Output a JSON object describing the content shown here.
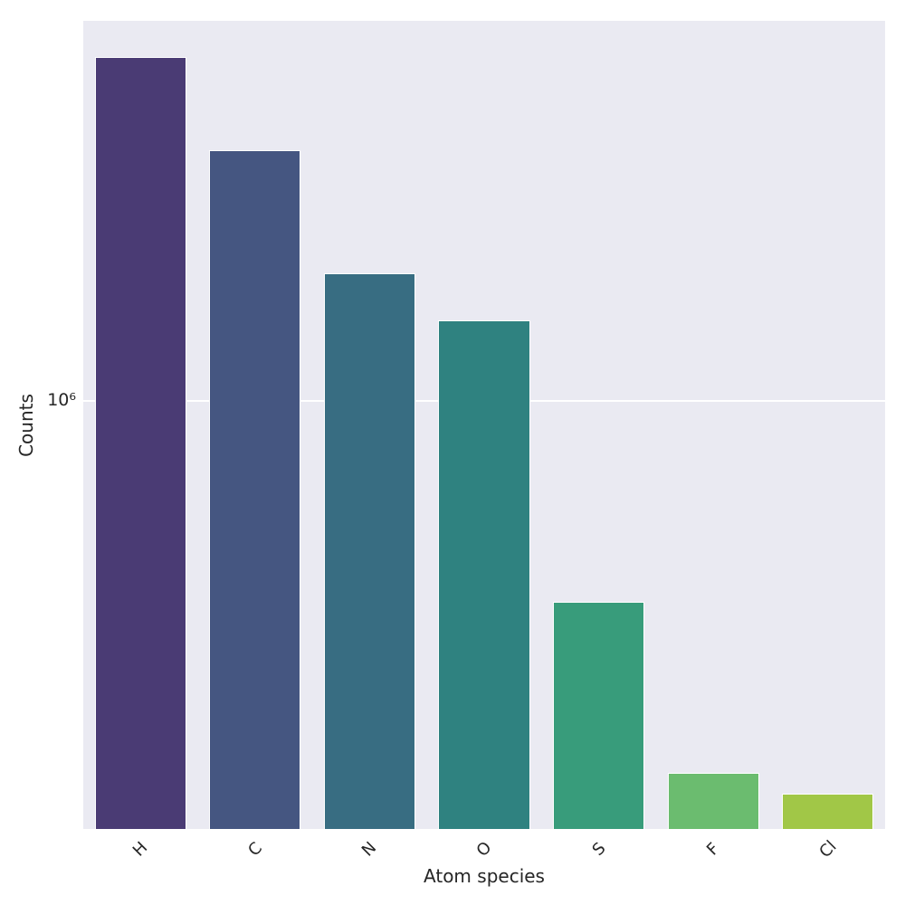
{
  "figure": {
    "background": "#ffffff",
    "plot_background": "#eaeaf2",
    "grid_color": "#ffffff",
    "text_color": "#262626"
  },
  "chart_data": {
    "type": "bar",
    "title": "",
    "xlabel": "Atom species",
    "ylabel": "Counts",
    "categories": [
      "H",
      "C",
      "N",
      "O",
      "S",
      "F",
      "Cl"
    ],
    "values": [
      6350000,
      3850000,
      1990000,
      1540000,
      340000,
      135000,
      121000
    ],
    "bar_colors": [
      "#4a3b74",
      "#455681",
      "#386d82",
      "#2f8280",
      "#389c7b",
      "#6bbc6f",
      "#a1c747"
    ],
    "yscale": "log",
    "ylim": [
      100000,
      7730000
    ],
    "yticks": [
      1000000
    ],
    "ytick_labels": [
      "10⁶"
    ],
    "x_tick_rotation_deg": 45,
    "bar_width_fraction": 0.8,
    "grid": true,
    "legend": false
  }
}
